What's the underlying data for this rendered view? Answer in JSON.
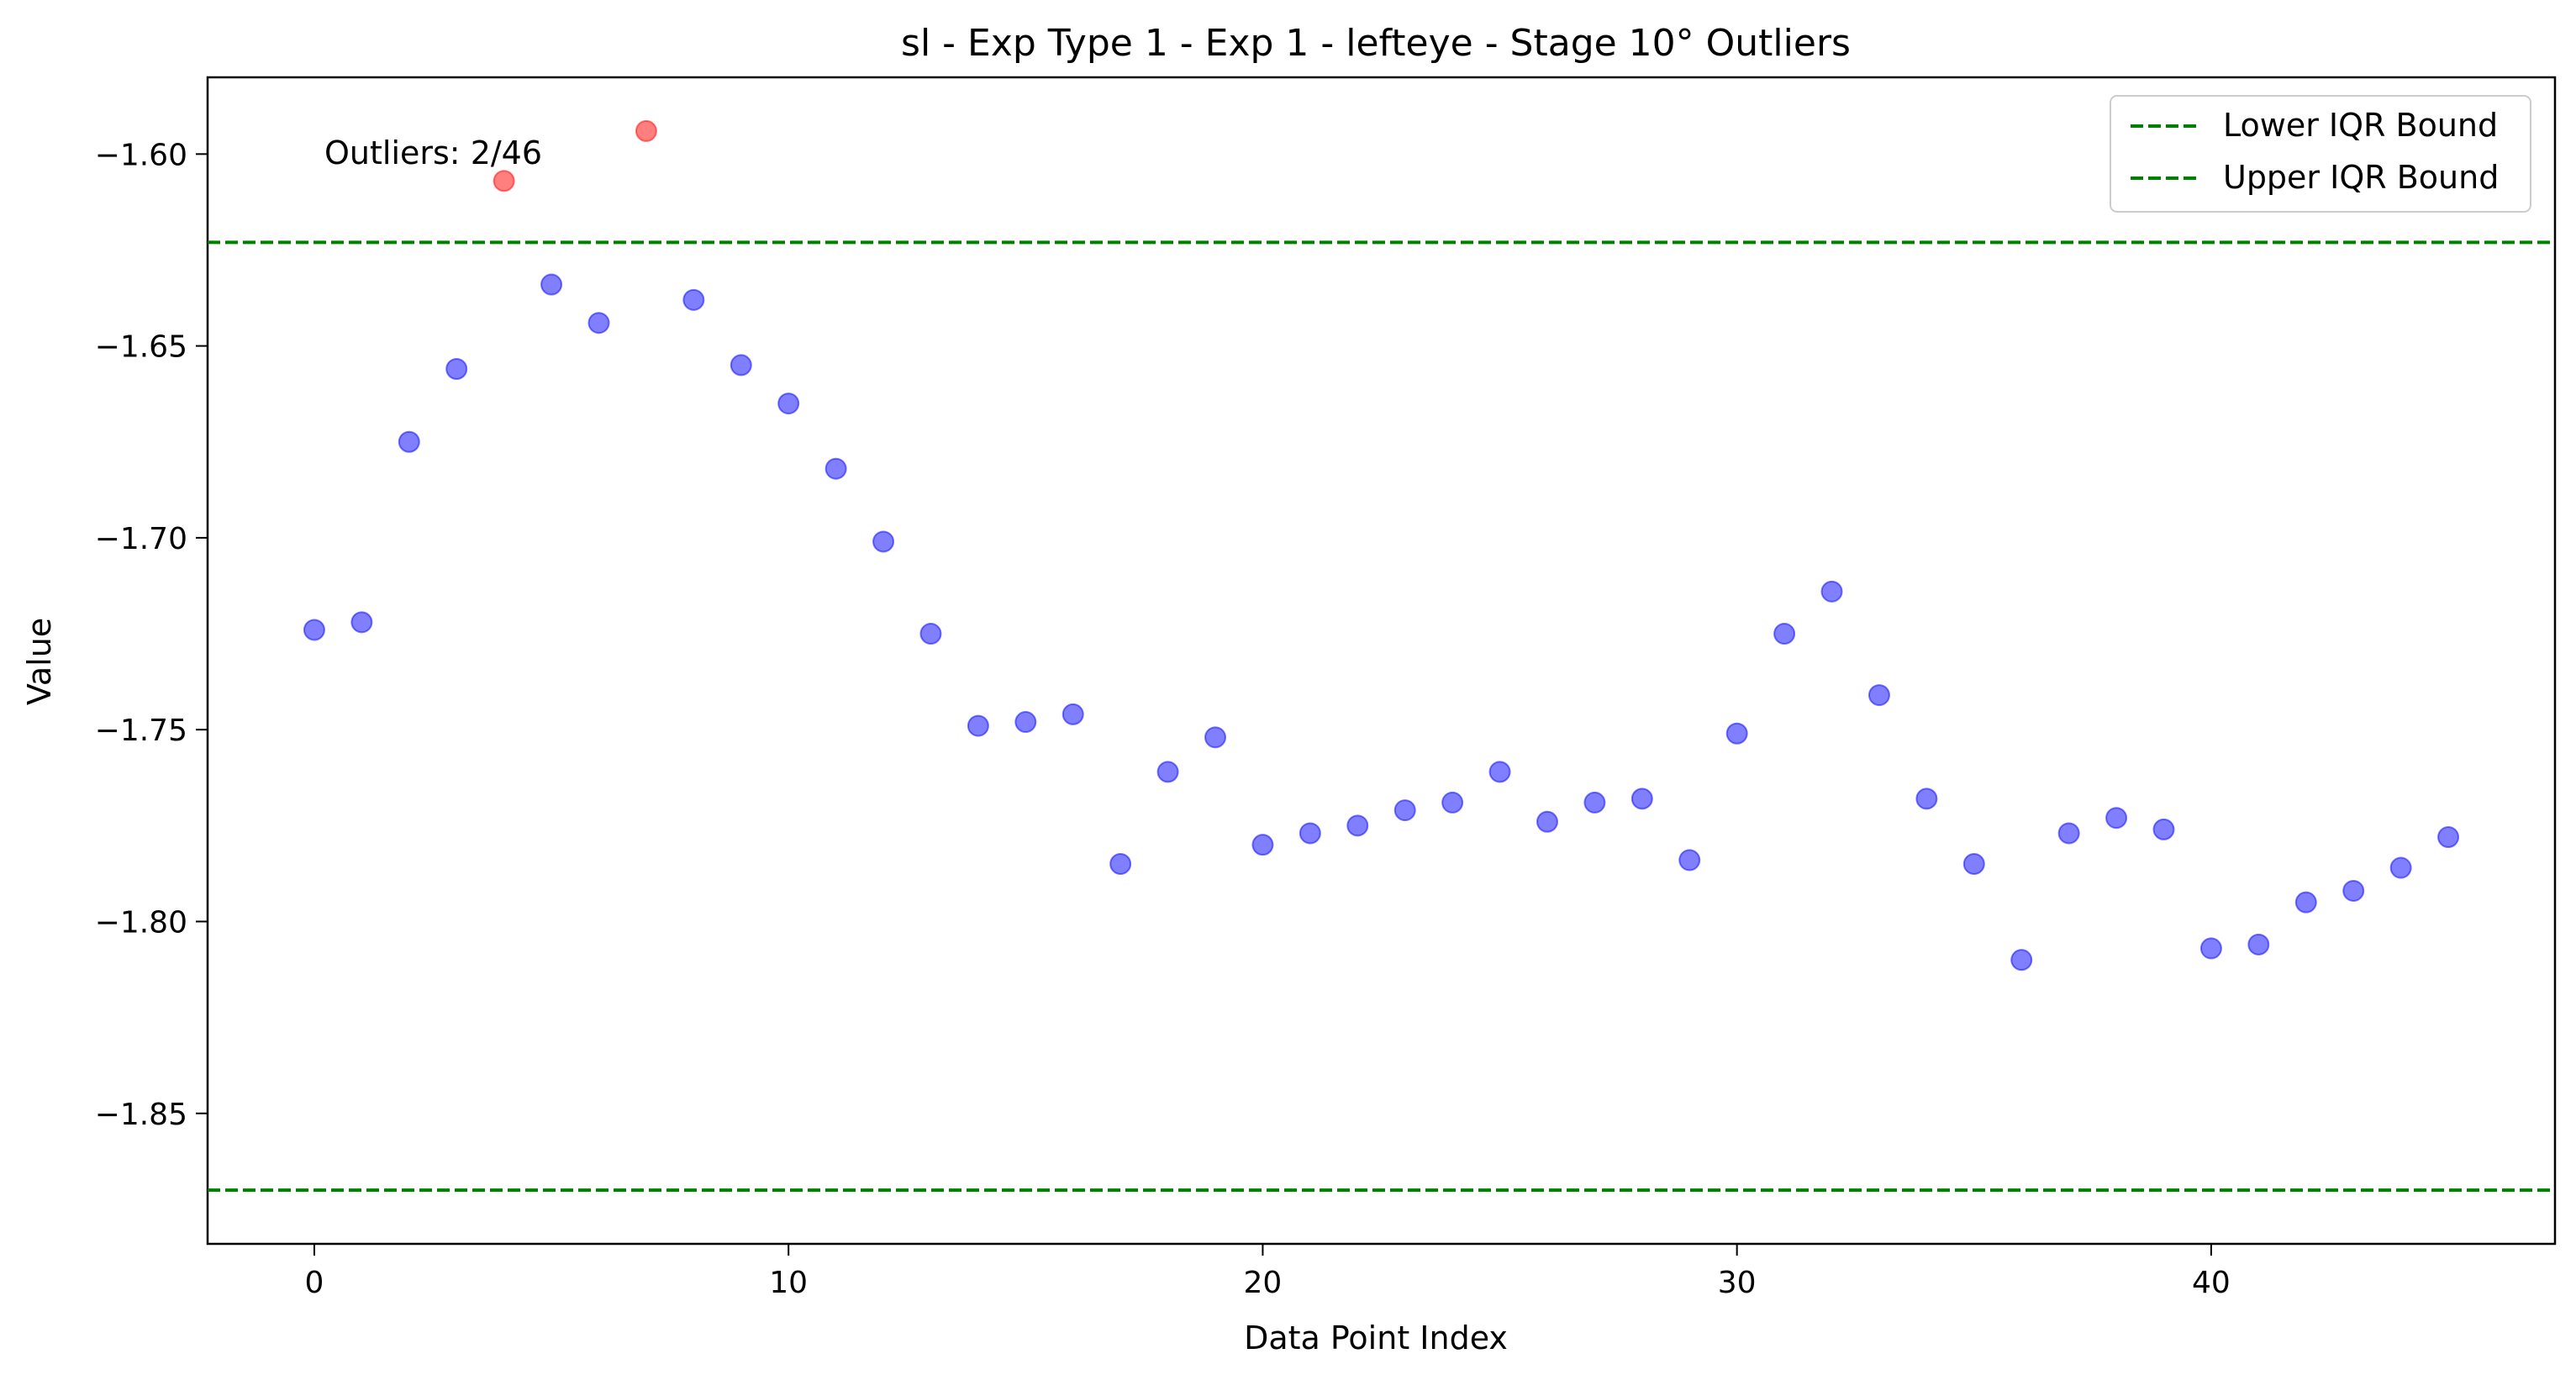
{
  "chart_data": {
    "type": "scatter",
    "title": "sl - Exp Type 1 - Exp 1 - lefteye - Stage 10° Outliers",
    "xlabel": "Data Point Index",
    "ylabel": "Value",
    "xlim": [
      -2.25,
      47.25
    ],
    "ylim": [
      -1.884,
      -1.58
    ],
    "xticks": [
      0,
      10,
      20,
      30,
      40
    ],
    "xtick_labels": [
      "0",
      "10",
      "20",
      "30",
      "40"
    ],
    "yticks": [
      -1.6,
      -1.65,
      -1.7,
      -1.75,
      -1.8,
      -1.85
    ],
    "ytick_labels": [
      "−1.60",
      "−1.65",
      "−1.70",
      "−1.75",
      "−1.80",
      "−1.85"
    ],
    "grid": false,
    "legend_position": "top-right",
    "annotation": "Outliers: 2/46",
    "bounds": [
      {
        "name": "Lower IQR Bound",
        "y": -1.87,
        "color": "#008000",
        "style": "dashed"
      },
      {
        "name": "Upper IQR Bound",
        "y": -1.623,
        "color": "#008000",
        "style": "dashed"
      }
    ],
    "series": [
      {
        "color": "#0000ff",
        "x": [
          0,
          1,
          2,
          3,
          5,
          6,
          8,
          9,
          10,
          11,
          12,
          13,
          14,
          15,
          16,
          17,
          18,
          19,
          20,
          21,
          22,
          23,
          24,
          25,
          26,
          27,
          28,
          29,
          30,
          31,
          32,
          33,
          34,
          35,
          36,
          37,
          38,
          39,
          40,
          41,
          42,
          43,
          44,
          45
        ],
        "y": [
          -1.724,
          -1.722,
          -1.675,
          -1.656,
          -1.634,
          -1.644,
          -1.638,
          -1.655,
          -1.665,
          -1.682,
          -1.701,
          -1.725,
          -1.749,
          -1.748,
          -1.746,
          -1.785,
          -1.761,
          -1.752,
          -1.78,
          -1.777,
          -1.775,
          -1.771,
          -1.769,
          -1.761,
          -1.774,
          -1.769,
          -1.768,
          -1.784,
          -1.751,
          -1.725,
          -1.714,
          -1.741,
          -1.768,
          -1.785,
          -1.81,
          -1.777,
          -1.773,
          -1.776,
          -1.807,
          -1.806,
          -1.795,
          -1.792,
          -1.786,
          -1.778
        ]
      },
      {
        "color": "#ff0000",
        "x": [
          4,
          7
        ],
        "y": [
          -1.607,
          -1.594
        ]
      }
    ]
  }
}
